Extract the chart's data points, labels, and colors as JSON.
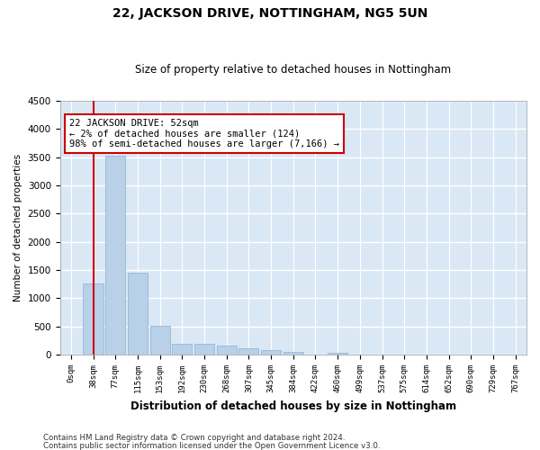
{
  "title": "22, JACKSON DRIVE, NOTTINGHAM, NG5 5UN",
  "subtitle": "Size of property relative to detached houses in Nottingham",
  "xlabel": "Distribution of detached houses by size in Nottingham",
  "ylabel": "Number of detached properties",
  "bar_color": "#b8d0e8",
  "bar_edge_color": "#8ab0d0",
  "bg_color": "#dae8f5",
  "grid_color": "#ffffff",
  "fig_bg_color": "#ffffff",
  "categories": [
    "0sqm",
    "38sqm",
    "77sqm",
    "115sqm",
    "153sqm",
    "192sqm",
    "230sqm",
    "268sqm",
    "307sqm",
    "345sqm",
    "384sqm",
    "422sqm",
    "460sqm",
    "499sqm",
    "537sqm",
    "575sqm",
    "614sqm",
    "652sqm",
    "690sqm",
    "729sqm",
    "767sqm"
  ],
  "values": [
    5,
    1270,
    3520,
    1460,
    520,
    200,
    200,
    170,
    110,
    90,
    50,
    5,
    30,
    0,
    5,
    0,
    0,
    0,
    0,
    0,
    0
  ],
  "ylim": [
    0,
    4500
  ],
  "yticks": [
    0,
    500,
    1000,
    1500,
    2000,
    2500,
    3000,
    3500,
    4000,
    4500
  ],
  "property_line_x": 1,
  "annotation_text": "22 JACKSON DRIVE: 52sqm\n← 2% of detached houses are smaller (124)\n98% of semi-detached houses are larger (7,166) →",
  "annotation_box_color": "#ffffff",
  "annotation_box_edge": "#cc0000",
  "property_line_color": "#cc0000",
  "footer_line1": "Contains HM Land Registry data © Crown copyright and database right 2024.",
  "footer_line2": "Contains public sector information licensed under the Open Government Licence v3.0."
}
